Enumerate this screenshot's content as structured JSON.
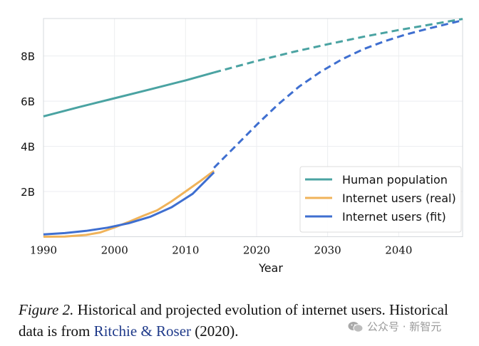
{
  "chart_data": {
    "type": "line",
    "title": "",
    "xlabel": "Year",
    "ylabel": "",
    "xlim": [
      1990,
      2049
    ],
    "ylim": [
      0,
      9.66
    ],
    "x_ticks": [
      1990,
      2000,
      2010,
      2020,
      2030,
      2040
    ],
    "x_tick_labels": [
      "1990",
      "2000",
      "2010",
      "2020",
      "2030",
      "2040"
    ],
    "y_ticks": [
      2,
      4,
      6,
      8
    ],
    "y_tick_labels": [
      "2B",
      "4B",
      "6B",
      "8B"
    ],
    "grid": true,
    "legend_position": "lower-right",
    "series": [
      {
        "name": "Human population",
        "color": "#4aa3a2",
        "style": "solid",
        "x": [
          1990,
          1995,
          2000,
          2005,
          2010,
          2014
        ],
        "values": [
          5.33,
          5.74,
          6.13,
          6.52,
          6.92,
          7.27
        ]
      },
      {
        "name": "Human population (projected)",
        "legend": false,
        "color": "#4aa3a2",
        "style": "dashed",
        "x": [
          2014,
          2020,
          2025,
          2030,
          2035,
          2040,
          2045,
          2049
        ],
        "values": [
          7.27,
          7.78,
          8.17,
          8.52,
          8.85,
          9.15,
          9.42,
          9.64
        ]
      },
      {
        "name": "Internet users (real)",
        "color": "#f0b35a",
        "style": "solid",
        "x": [
          1990,
          1993,
          1996,
          1998,
          2000,
          2002,
          2004,
          2006,
          2008,
          2010,
          2012,
          2014
        ],
        "values": [
          0.0,
          0.01,
          0.08,
          0.19,
          0.41,
          0.66,
          0.92,
          1.17,
          1.56,
          2.0,
          2.45,
          2.92
        ]
      },
      {
        "name": "Internet users (fit)",
        "color": "#3f6fd0",
        "style": "solid",
        "x": [
          1990,
          1993,
          1996,
          1999,
          2002,
          2005,
          2008,
          2011,
          2014
        ],
        "values": [
          0.1,
          0.16,
          0.26,
          0.4,
          0.6,
          0.88,
          1.3,
          1.9,
          2.85
        ]
      },
      {
        "name": "Internet users (fit, projected)",
        "legend": false,
        "color": "#3f6fd0",
        "style": "dashed",
        "x": [
          2014,
          2017,
          2020,
          2023,
          2026,
          2029,
          2032,
          2035,
          2038,
          2041,
          2044,
          2049
        ],
        "values": [
          3.05,
          4.0,
          4.95,
          5.85,
          6.65,
          7.3,
          7.85,
          8.3,
          8.65,
          8.95,
          9.2,
          9.58
        ]
      }
    ]
  },
  "legend": {
    "items": [
      {
        "label": "Human population",
        "color": "#4aa3a2"
      },
      {
        "label": "Internet users (real)",
        "color": "#f0b35a"
      },
      {
        "label": "Internet users (fit)",
        "color": "#3f6fd0"
      }
    ]
  },
  "caption": {
    "figure_label": "Figure 2.",
    "text_before_cite": " Historical and projected evolution of internet users. Historical data is from ",
    "citation": "Ritchie & Roser",
    "text_after_cite": " (2020).",
    "citation_color": "#1f3a8a"
  },
  "watermark": {
    "text": "公众号 · 新智元"
  }
}
